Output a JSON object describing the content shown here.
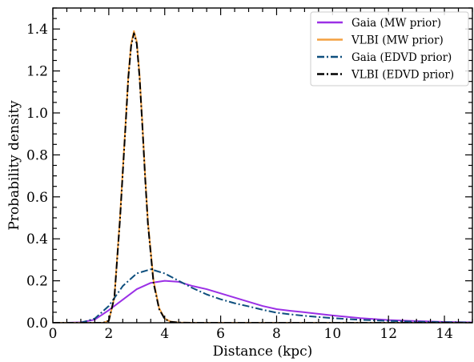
{
  "chart_data": {
    "type": "line",
    "title": "",
    "xlabel": "Distance (kpc)",
    "ylabel": "Probability density",
    "xlim": [
      0,
      15
    ],
    "ylim": [
      0,
      1.5
    ],
    "xticks": [
      0,
      2,
      4,
      6,
      8,
      10,
      12,
      14
    ],
    "xtick_labels": [
      "0",
      "2",
      "4",
      "6",
      "8",
      "10",
      "12",
      "14"
    ],
    "yticks": [
      0,
      0.2,
      0.4,
      0.6,
      0.8,
      1.0,
      1.2,
      1.4
    ],
    "ytick_labels": [
      "0.0",
      "0.2",
      "0.4",
      "0.6",
      "0.8",
      "1.0",
      "1.2",
      "1.4"
    ],
    "grid": false,
    "legend_position": "top-right",
    "series": [
      {
        "name": "Gaia (MW prior)",
        "color": "#9b30e6",
        "style": "solid",
        "x": [
          0,
          0.5,
          1.0,
          1.5,
          2.0,
          2.5,
          3.0,
          3.5,
          4.0,
          4.5,
          5.0,
          5.5,
          6.0,
          6.5,
          7.0,
          7.5,
          8.0,
          8.5,
          9.0,
          10.0,
          11.0,
          12.0,
          13.0,
          14.0,
          15.0
        ],
        "y": [
          0.0,
          0.0,
          0.002,
          0.015,
          0.06,
          0.11,
          0.16,
          0.19,
          0.2,
          0.195,
          0.175,
          0.16,
          0.14,
          0.12,
          0.1,
          0.08,
          0.065,
          0.057,
          0.05,
          0.035,
          0.022,
          0.013,
          0.008,
          0.004,
          0.002
        ]
      },
      {
        "name": "VLBI (MW prior)",
        "color": "#f4a040",
        "style": "solid",
        "x": [
          0,
          1.8,
          2.0,
          2.2,
          2.4,
          2.6,
          2.7,
          2.8,
          2.9,
          3.0,
          3.1,
          3.2,
          3.3,
          3.4,
          3.6,
          3.8,
          4.0,
          4.2,
          4.5,
          5.0,
          15.0
        ],
        "y": [
          0,
          0.0,
          0.01,
          0.12,
          0.5,
          0.95,
          1.18,
          1.33,
          1.39,
          1.34,
          1.18,
          0.95,
          0.7,
          0.48,
          0.2,
          0.07,
          0.02,
          0.006,
          0.001,
          0.0,
          0.0
        ]
      },
      {
        "name": "Gaia (EDVD prior)",
        "color": "#0e4f7e",
        "style": "dashdot",
        "x": [
          0,
          0.5,
          1.0,
          1.5,
          2.0,
          2.5,
          3.0,
          3.5,
          4.0,
          4.5,
          5.0,
          5.5,
          6.0,
          6.5,
          7.0,
          7.5,
          8.0,
          8.5,
          9.0,
          10.0,
          11.0,
          12.0,
          13.0,
          14.0,
          15.0
        ],
        "y": [
          0,
          0,
          0.0,
          0.02,
          0.08,
          0.175,
          0.235,
          0.255,
          0.235,
          0.2,
          0.165,
          0.135,
          0.112,
          0.093,
          0.078,
          0.062,
          0.048,
          0.04,
          0.033,
          0.022,
          0.014,
          0.009,
          0.005,
          0.003,
          0.001
        ]
      },
      {
        "name": "VLBI (EDVD prior)",
        "color": "#000000",
        "style": "dashdot",
        "x": [
          0,
          1.8,
          2.0,
          2.2,
          2.4,
          2.6,
          2.7,
          2.8,
          2.9,
          3.0,
          3.1,
          3.2,
          3.3,
          3.4,
          3.6,
          3.8,
          4.0,
          4.2,
          4.5,
          5.0,
          15.0
        ],
        "y": [
          0,
          0.0,
          0.01,
          0.12,
          0.49,
          0.94,
          1.17,
          1.32,
          1.38,
          1.33,
          1.17,
          0.94,
          0.69,
          0.47,
          0.19,
          0.065,
          0.018,
          0.005,
          0.001,
          0.0,
          0.0
        ]
      }
    ]
  }
}
